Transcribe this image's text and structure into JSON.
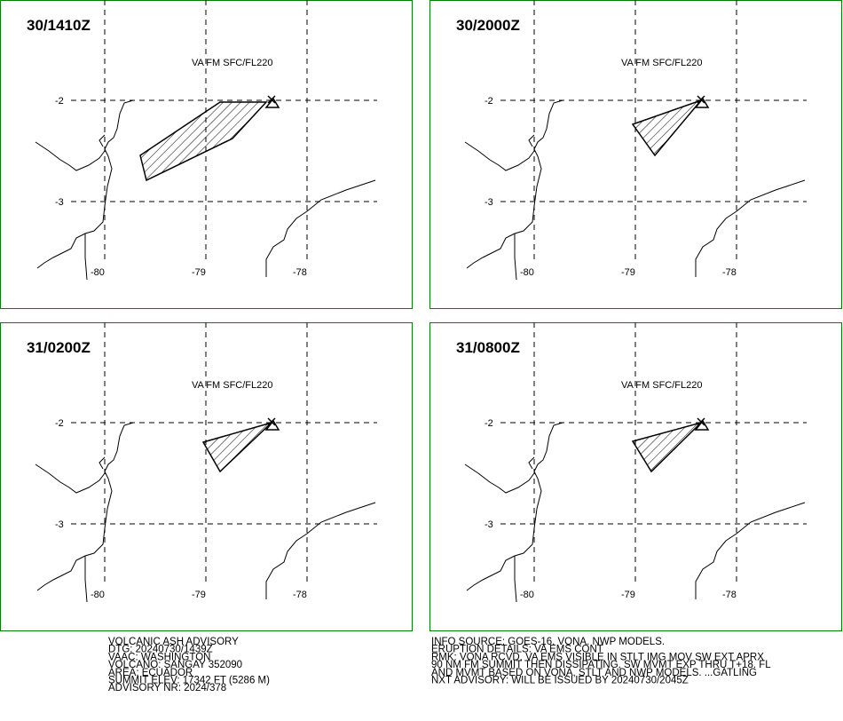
{
  "panels": [
    {
      "time": "30/1410Z",
      "layer": "VA FM SFC/FL220",
      "lat_labels": [
        "-2",
        "-3"
      ],
      "lon_labels": [
        "-80",
        "-79",
        "-78"
      ]
    },
    {
      "time": "30/2000Z",
      "layer": "VA FM SFC/FL220",
      "lat_labels": [
        "-2",
        "-3"
      ],
      "lon_labels": [
        "-80",
        "-79",
        "-78"
      ]
    },
    {
      "time": "31/0200Z",
      "layer": "VA FM SFC/FL220",
      "lat_labels": [
        "-2",
        "-3"
      ],
      "lon_labels": [
        "-80",
        "-79",
        "-78"
      ]
    },
    {
      "time": "31/0800Z",
      "layer": "VA FM SFC/FL220",
      "lat_labels": [
        "-2",
        "-3"
      ],
      "lon_labels": [
        "-80",
        "-79",
        "-78"
      ]
    }
  ],
  "advisory": {
    "left": [
      "VOLCANIC ASH ADVISORY",
      "DTG: 20240730/1439Z",
      "VAAC: WASHINGTON",
      "VOLCANO: SANGAY 352090",
      "AREA: ECUADOR",
      "SUMMIT ELEV: 17342 FT (5286 M)",
      "ADVISORY NR: 2024/378"
    ],
    "right": [
      "INFO SOURCE: GOES-16. VONA. NWP MODELS.",
      "ERUPTION DETAILS: VA EMS CONT",
      "RMK: VONA RCVD. VA EMS VISIBLE IN STLT IMG MOV SW EXT APRX",
      "90 NM FM SUMMIT THEN DISSIPATING. SW MVMT EXP THRU T+18. FL",
      "AND MVMT BASED ON VONA, STLT AND NWP MODELS. ...GATLING",
      "NXT ADVISORY: WILL BE ISSUED BY 20240730/2045Z"
    ]
  }
}
